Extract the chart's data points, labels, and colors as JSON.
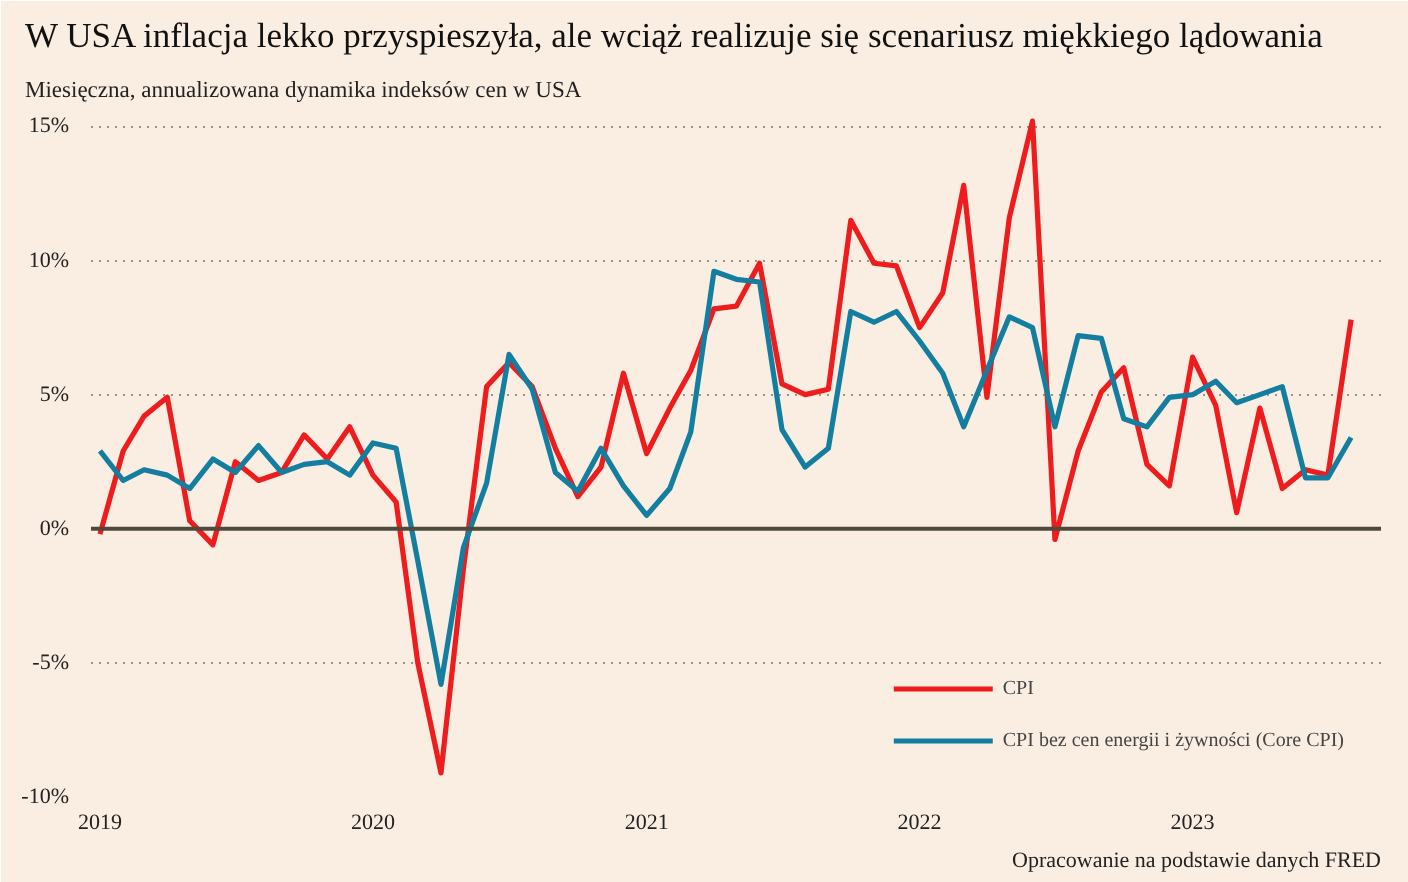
{
  "chart_data": {
    "type": "line",
    "title": "W USA inflacja lekko przyspieszyła, ale wciąż realizuje się scenariusz miękkiego lądowania",
    "subtitle": "Miesięczna, annualizowana dynamika indeksów cen w USA",
    "x": [
      "2019-01",
      "2019-02",
      "2019-03",
      "2019-04",
      "2019-05",
      "2019-06",
      "2019-07",
      "2019-08",
      "2019-09",
      "2019-10",
      "2019-11",
      "2019-12",
      "2020-01",
      "2020-02",
      "2020-03",
      "2020-04",
      "2020-05",
      "2020-06",
      "2020-07",
      "2020-08",
      "2020-09",
      "2020-10",
      "2020-11",
      "2020-12",
      "2021-01",
      "2021-02",
      "2021-03",
      "2021-04",
      "2021-05",
      "2021-06",
      "2021-07",
      "2021-08",
      "2021-09",
      "2021-10",
      "2021-11",
      "2021-12",
      "2022-01",
      "2022-02",
      "2022-03",
      "2022-04",
      "2022-05",
      "2022-06",
      "2022-07",
      "2022-08",
      "2022-09",
      "2022-10",
      "2022-11",
      "2022-12",
      "2023-01",
      "2023-02",
      "2023-03",
      "2023-04",
      "2023-05",
      "2023-06",
      "2023-07",
      "2023-08"
    ],
    "series": [
      {
        "name": "CPI",
        "color": "#ee1c1c",
        "values": [
          -0.2,
          2.9,
          4.2,
          4.9,
          0.3,
          -0.6,
          2.5,
          1.8,
          2.1,
          3.5,
          2.6,
          3.8,
          2.0,
          1.0,
          -5.0,
          -9.1,
          -1.5,
          5.3,
          6.2,
          5.3,
          3.0,
          1.2,
          2.3,
          5.8,
          2.8,
          4.5,
          5.9,
          8.2,
          8.3,
          9.9,
          5.4,
          5.0,
          5.2,
          11.5,
          9.9,
          9.8,
          7.5,
          8.8,
          12.8,
          4.9,
          11.6,
          15.2,
          -0.4,
          2.9,
          5.1,
          6.0,
          2.4,
          1.6,
          6.4,
          4.6,
          0.6,
          4.5,
          1.5,
          2.2,
          2.0,
          7.8
        ]
      },
      {
        "name": "CPI bez cen energii i żywności (Core CPI)",
        "color": "#137ea0",
        "values": [
          2.9,
          1.8,
          2.2,
          2.0,
          1.5,
          2.6,
          2.1,
          3.1,
          2.1,
          2.4,
          2.5,
          2.0,
          3.2,
          3.0,
          -1.2,
          -5.8,
          -0.7,
          1.7,
          6.5,
          5.2,
          2.1,
          1.4,
          3.0,
          1.6,
          0.5,
          1.5,
          3.6,
          9.6,
          9.3,
          9.2,
          3.7,
          2.3,
          3.0,
          8.1,
          7.7,
          8.1,
          7.0,
          5.8,
          3.8,
          5.9,
          7.9,
          7.5,
          3.8,
          7.2,
          7.1,
          4.1,
          3.8,
          4.9,
          5.0,
          5.5,
          4.7,
          5.0,
          5.3,
          1.9,
          1.9,
          3.4
        ]
      }
    ],
    "xlim": [
      "2018-12-20",
      "2023-09-10"
    ],
    "xticks": [
      {
        "value": "2019",
        "label": "2019"
      },
      {
        "value": "2020",
        "label": "2020"
      },
      {
        "value": "2021",
        "label": "2021"
      },
      {
        "value": "2022",
        "label": "2022"
      },
      {
        "value": "2023",
        "label": "2023"
      }
    ],
    "ylim": [
      -10,
      15.5
    ],
    "yticks": [
      {
        "value": -10,
        "label": "-10%"
      },
      {
        "value": -5,
        "label": "-5%"
      },
      {
        "value": 0,
        "label": "0%"
      },
      {
        "value": 5,
        "label": "5%"
      },
      {
        "value": 10,
        "label": "10%"
      },
      {
        "value": 15,
        "label": "15%"
      }
    ],
    "grid": "y",
    "legend": "bottom right",
    "line_style": "solid",
    "marker": "none",
    "ref_lines": [
      {
        "axis": "y",
        "value": 0,
        "color": "#4d4a3c"
      }
    ],
    "annotations": [
      "Opracowanie na podstawie danych FRED"
    ]
  }
}
